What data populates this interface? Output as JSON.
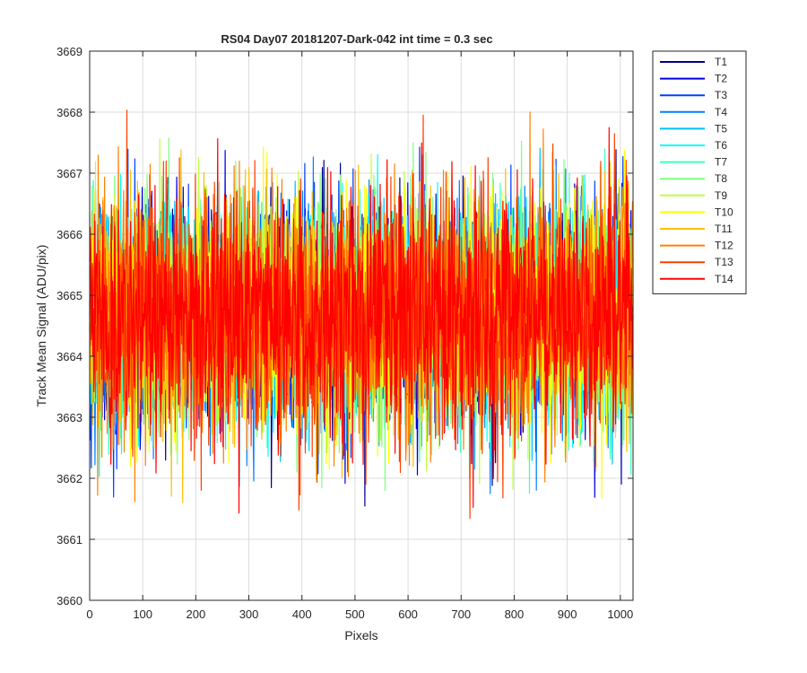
{
  "chart_data": {
    "type": "line",
    "title": "RS04 Day07 20181207-Dark-042 int time = 0.3 sec",
    "xlabel": "Pixels",
    "ylabel": "Track Mean Signal (ADU/pix)",
    "xlim": [
      0,
      1024
    ],
    "ylim": [
      3660,
      3669
    ],
    "xticks": [
      "0",
      "100",
      "200",
      "300",
      "400",
      "500",
      "600",
      "700",
      "800",
      "900",
      "1000"
    ],
    "yticks": [
      "3660",
      "3661",
      "3662",
      "3663",
      "3664",
      "3665",
      "3666",
      "3667",
      "3668",
      "3669"
    ],
    "grid": true,
    "legend_position": "outside-top-right",
    "mean": 3664.7,
    "std": 1.0,
    "min_observed": 3660.65,
    "max_observed": 3668.35,
    "points_per_series": 1024,
    "series": [
      {
        "name": "T1",
        "color": "#00008F"
      },
      {
        "name": "T2",
        "color": "#0000DF"
      },
      {
        "name": "T3",
        "color": "#0040FF"
      },
      {
        "name": "T4",
        "color": "#0080FF"
      },
      {
        "name": "T5",
        "color": "#00BFFF"
      },
      {
        "name": "T6",
        "color": "#00FFFF"
      },
      {
        "name": "T7",
        "color": "#40FFBF"
      },
      {
        "name": "T8",
        "color": "#80FF80"
      },
      {
        "name": "T9",
        "color": "#BFFF40"
      },
      {
        "name": "T10",
        "color": "#FFFF00"
      },
      {
        "name": "T11",
        "color": "#FFBF00"
      },
      {
        "name": "T12",
        "color": "#FF8000"
      },
      {
        "name": "T13",
        "color": "#FF4000"
      },
      {
        "name": "T14",
        "color": "#FF0000"
      }
    ]
  }
}
